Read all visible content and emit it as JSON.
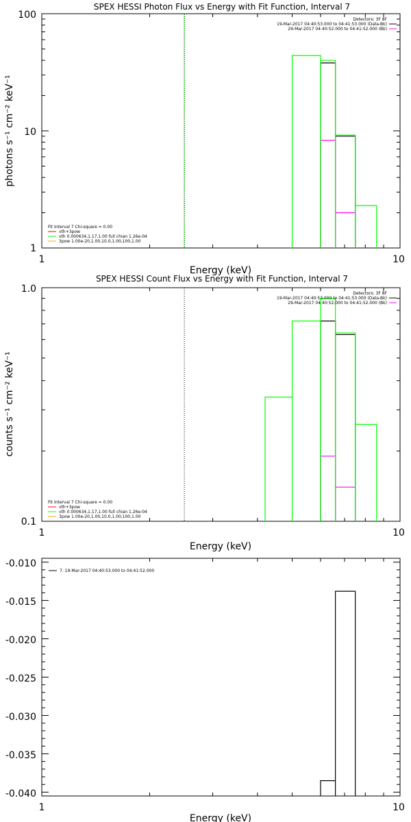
{
  "colors": {
    "black": "#000000",
    "green": "#00ff00",
    "magenta": "#ff00ff",
    "red": "#ff0000",
    "orange": "#ffa500",
    "dotted_green": "#00a000"
  },
  "chart_data": [
    {
      "type": "line",
      "title": "SPEX HESSI Photon Flux vs Energy with Fit Function, Interval 7",
      "xlabel": "Energy (keV)",
      "ylabel": "photons s⁻¹ cm⁻² keV⁻¹",
      "xscale": "log",
      "yscale": "log",
      "xlim": [
        1,
        10
      ],
      "ylim": [
        1,
        100
      ],
      "xticks": [
        "1",
        "10"
      ],
      "yticks": [
        "1",
        "10",
        "100"
      ],
      "legend_top_right": {
        "header": "Detectors: 3F 8F",
        "entries": [
          {
            "label": "19-Mar-2017 04:40:53.000 to 04:41:53.000 (Data-Bk)",
            "color": "#000000"
          },
          {
            "label": "29-Mar-2017 04:40:52.000 to 04:41:52.000 (Bk)",
            "color": "#ff00ff"
          }
        ]
      },
      "legend_bottom_left": {
        "header": "Fit Interval  7   Chi-square = 0.00",
        "entries": [
          {
            "label": "vth+3pow",
            "color": "#ff0000"
          },
          {
            "label": "vth 0.000634,1.17,1.00  full chian 1.26e-04",
            "color": "#00ff00"
          },
          {
            "label": "3pow 1.00e-20,1.00,10.0,1.00,100,1.00",
            "color": "#ffa500"
          }
        ]
      },
      "vline_x": 2.5,
      "series": [
        {
          "color": "#000000",
          "steps": [
            [
              6.0,
              6.6,
              38
            ],
            [
              6.6,
              7.5,
              9.0
            ]
          ]
        },
        {
          "color": "#ff00ff",
          "steps": [
            [
              6.0,
              6.6,
              8.3
            ],
            [
              6.6,
              7.5,
              2.0
            ]
          ]
        },
        {
          "color": "#00ff00",
          "steps": [
            [
              5.0,
              6.0,
              44
            ],
            [
              6.0,
              6.6,
              40
            ],
            [
              6.6,
              7.5,
              9.2
            ],
            [
              7.5,
              8.6,
              2.3
            ]
          ]
        }
      ]
    },
    {
      "type": "line",
      "title": "SPEX HESSI Count Flux vs Energy with Fit Function, Interval 7",
      "xlabel": "Energy (keV)",
      "ylabel": "counts s⁻¹ cm⁻² keV⁻¹",
      "xscale": "log",
      "yscale": "log",
      "xlim": [
        1,
        10
      ],
      "ylim": [
        0.1,
        1.0
      ],
      "xticks": [
        "1",
        "10"
      ],
      "yticks": [
        "0.1",
        "1.0"
      ],
      "legend_top_right": {
        "header": "Detectors: 3F 8F",
        "entries": [
          {
            "label": "19-Mar-2017 04:40:53.000 to 04:41:53.000 (Data-Bk)",
            "color": "#000000"
          },
          {
            "label": "29-Mar-2017 04:40:52.000 to 04:41:52.000 (Bk)",
            "color": "#ff00ff"
          }
        ]
      },
      "legend_bottom_left": {
        "header": "Fit Interval  7   Chi-square = 0.00",
        "entries": [
          {
            "label": "vth+3pow",
            "color": "#ff0000"
          },
          {
            "label": "vth 0.000634,1.17,1.00  full chian 1.26e-04",
            "color": "#00ff00"
          },
          {
            "label": "3pow 1.00e-20,1.00,10.0,1.00,100,1.00",
            "color": "#ffa500"
          }
        ]
      },
      "vline_x": 2.5,
      "series": [
        {
          "color": "#000000",
          "steps": [
            [
              6.0,
              6.6,
              0.72
            ],
            [
              6.6,
              7.5,
              0.63
            ]
          ]
        },
        {
          "color": "#ff00ff",
          "steps": [
            [
              6.0,
              6.6,
              0.19
            ],
            [
              6.6,
              7.5,
              0.14
            ]
          ]
        },
        {
          "color": "#00ff00",
          "steps": [
            [
              4.2,
              5.0,
              0.34
            ],
            [
              5.0,
              6.0,
              0.72
            ],
            [
              6.0,
              6.6,
              0.9
            ],
            [
              6.6,
              7.5,
              0.64
            ],
            [
              7.5,
              8.6,
              0.26
            ]
          ]
        }
      ]
    },
    {
      "type": "line",
      "title": "",
      "xlabel": "Energy (keV)",
      "ylabel": "",
      "xscale": "log",
      "yscale": "linear",
      "xlim": [
        1,
        10
      ],
      "ylim": [
        -0.0405,
        -0.0095
      ],
      "xticks": [
        "1",
        "10"
      ],
      "yticks": [
        "-0.010",
        "-0.015",
        "-0.020",
        "-0.025",
        "-0.030",
        "-0.035",
        "-0.040"
      ],
      "legend_top_left": {
        "entries": [
          {
            "label": "7. 19-Mar-2017 04:40:53.000 to 04:41:52.000",
            "color": "#000000"
          }
        ]
      },
      "series": [
        {
          "color": "#000000",
          "steps": [
            [
              6.0,
              6.6,
              -0.0385
            ],
            [
              6.6,
              7.5,
              -0.0138
            ]
          ]
        }
      ]
    }
  ]
}
